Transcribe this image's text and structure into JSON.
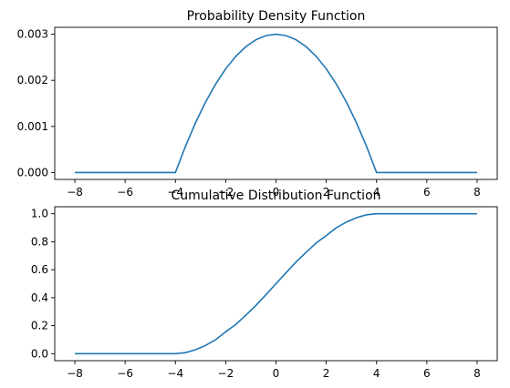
{
  "chart_data": [
    {
      "type": "line",
      "title": "Probability Density Function",
      "xlabel": "",
      "ylabel": "",
      "xlim": [
        -8.8,
        8.8
      ],
      "ylim": [
        -0.00015,
        0.00315
      ],
      "x_ticks": [
        -8,
        -6,
        -4,
        -2,
        0,
        2,
        4,
        6,
        8
      ],
      "x_tick_labels": [
        "−8",
        "−6",
        "−4",
        "−2",
        "0",
        "2",
        "4",
        "6",
        "8"
      ],
      "y_ticks": [
        0,
        0.001,
        0.002,
        0.003
      ],
      "y_tick_labels": [
        "0.000",
        "0.001",
        "0.002",
        "0.003"
      ],
      "grid": false,
      "color": "#1f77b4",
      "series": [
        {
          "x": [
            -8,
            -4,
            -3.6,
            -3.2,
            -2.8,
            -2.4,
            -2,
            -1.6,
            -1.2,
            -0.8,
            -0.4,
            0,
            0.4,
            0.8,
            1.2,
            1.6,
            2,
            2.4,
            2.8,
            3.2,
            3.6,
            4,
            8
          ],
          "y": [
            0,
            0,
            0.00057,
            0.00108,
            0.00153,
            0.00192,
            0.00225,
            0.00252,
            0.00273,
            0.00288,
            0.00297,
            0.003,
            0.00297,
            0.00288,
            0.00273,
            0.00252,
            0.00225,
            0.00192,
            0.00153,
            0.00108,
            0.00057,
            0,
            0
          ]
        }
      ]
    },
    {
      "type": "line",
      "title": "Cumulative Distribution Function",
      "xlabel": "",
      "ylabel": "",
      "xlim": [
        -8.8,
        8.8
      ],
      "ylim": [
        -0.05,
        1.05
      ],
      "x_ticks": [
        -8,
        -6,
        -4,
        -2,
        0,
        2,
        4,
        6,
        8
      ],
      "x_tick_labels": [
        "−8",
        "−6",
        "−4",
        "−2",
        "0",
        "2",
        "4",
        "6",
        "8"
      ],
      "y_ticks": [
        0,
        0.2,
        0.4,
        0.6,
        0.8,
        1.0
      ],
      "y_tick_labels": [
        "0.0",
        "0.2",
        "0.4",
        "0.6",
        "0.8",
        "1.0"
      ],
      "grid": false,
      "color": "#1f77b4",
      "series": [
        {
          "x": [
            -8,
            -4,
            -3.6,
            -3.2,
            -2.8,
            -2.4,
            -2,
            -1.6,
            -1.2,
            -0.8,
            -0.4,
            0,
            0.4,
            0.8,
            1.2,
            1.6,
            2,
            2.4,
            2.8,
            3.2,
            3.6,
            4,
            8
          ],
          "y": [
            0,
            0,
            0.0074,
            0.028,
            0.0595,
            0.0999,
            0.1563,
            0.2088,
            0.2752,
            0.344,
            0.4215,
            0.5,
            0.5785,
            0.656,
            0.7248,
            0.7912,
            0.8437,
            0.9001,
            0.9405,
            0.972,
            0.9926,
            1.0,
            1.0
          ]
        }
      ]
    }
  ]
}
